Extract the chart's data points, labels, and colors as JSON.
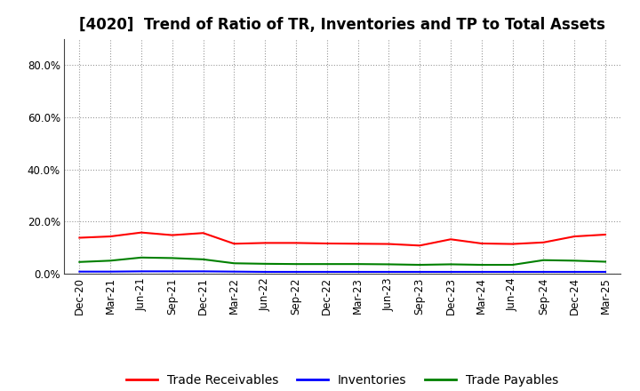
{
  "title": "[4020]  Trend of Ratio of TR, Inventories and TP to Total Assets",
  "x_labels": [
    "Dec-20",
    "Mar-21",
    "Jun-21",
    "Sep-21",
    "Dec-21",
    "Mar-22",
    "Jun-22",
    "Sep-22",
    "Dec-22",
    "Mar-23",
    "Jun-23",
    "Sep-23",
    "Dec-23",
    "Mar-24",
    "Jun-24",
    "Sep-24",
    "Dec-24",
    "Mar-25"
  ],
  "trade_receivables": [
    0.138,
    0.143,
    0.158,
    0.148,
    0.156,
    0.115,
    0.118,
    0.118,
    0.116,
    0.115,
    0.114,
    0.108,
    0.132,
    0.116,
    0.114,
    0.12,
    0.143,
    0.15
  ],
  "inventories": [
    0.008,
    0.008,
    0.009,
    0.009,
    0.009,
    0.008,
    0.007,
    0.007,
    0.007,
    0.007,
    0.007,
    0.007,
    0.007,
    0.007,
    0.007,
    0.007,
    0.007,
    0.007
  ],
  "trade_payables": [
    0.045,
    0.05,
    0.062,
    0.06,
    0.055,
    0.04,
    0.038,
    0.037,
    0.037,
    0.037,
    0.036,
    0.034,
    0.036,
    0.034,
    0.034,
    0.052,
    0.05,
    0.046
  ],
  "tr_color": "#FF0000",
  "inv_color": "#0000FF",
  "tp_color": "#008000",
  "ylim": [
    0.0,
    0.9
  ],
  "yticks": [
    0.0,
    0.2,
    0.4,
    0.6,
    0.8
  ],
  "ytick_labels": [
    "0.0%",
    "20.0%",
    "40.0%",
    "60.0%",
    "80.0%"
  ],
  "background_color": "#FFFFFF",
  "grid_color": "#999999",
  "legend_labels": [
    "Trade Receivables",
    "Inventories",
    "Trade Payables"
  ],
  "title_fontsize": 12,
  "tick_fontsize": 8.5,
  "legend_fontsize": 10
}
